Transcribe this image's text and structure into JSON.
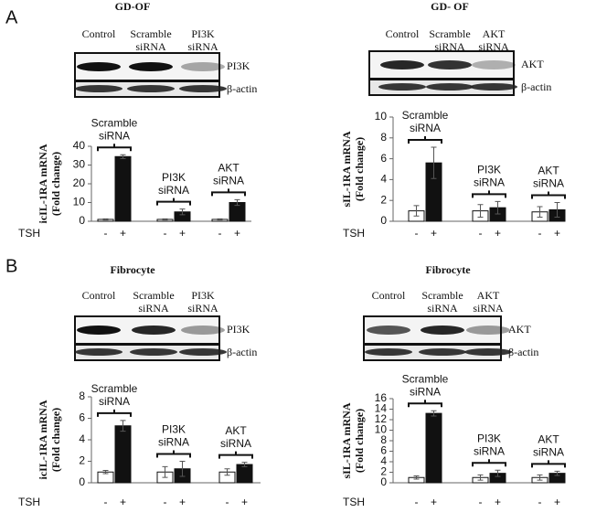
{
  "figure": {
    "panels": [
      {
        "letter": "A",
        "blots": [
          {
            "title": "GD-OF",
            "lanes": [
              [
                "Control"
              ],
              [
                "Scramble",
                "siRNA"
              ],
              [
                "PI3K",
                "siRNA"
              ]
            ],
            "protein": "PI3K",
            "loading": "β-actin"
          },
          {
            "title": "GD- OF",
            "lanes": [
              [
                "Control"
              ],
              [
                "Scramble",
                "siRNA"
              ],
              [
                "AKT",
                "siRNA"
              ]
            ],
            "protein": "AKT",
            "loading": "β-actin"
          }
        ]
      },
      {
        "letter": "B",
        "blots": [
          {
            "title": "Fibrocyte",
            "lanes": [
              [
                "Control"
              ],
              [
                "Scramble",
                "siRNA"
              ],
              [
                "PI3K",
                "siRNA"
              ]
            ],
            "protein": "PI3K",
            "loading": "β-actin"
          },
          {
            "title": "Fibrocyte",
            "lanes": [
              [
                "Control"
              ],
              [
                "Scramble",
                "siRNA"
              ],
              [
                "AKT",
                "siRNA"
              ]
            ],
            "protein": "AKT",
            "loading": "β-actin"
          }
        ]
      }
    ]
  },
  "chart_data": [
    {
      "type": "bar",
      "ylabel": [
        "icIL-1RA mRNA",
        "(Fold change)"
      ],
      "xlabel": "TSH",
      "sublabels": [
        "-",
        "+"
      ],
      "categories": [
        [
          "Scramble",
          "siRNA"
        ],
        [
          "PI3K",
          "siRNA"
        ],
        [
          "AKT",
          "siRNA"
        ]
      ],
      "series": [
        {
          "color": "#ffffff",
          "values": [
            1,
            1,
            1
          ],
          "errors": [
            0.3,
            0.3,
            0.3
          ]
        },
        {
          "color": "#111111",
          "values": [
            34.5,
            5,
            10
          ],
          "errors": [
            1,
            1.5,
            1.5
          ]
        }
      ],
      "ylim": [
        0,
        40
      ],
      "yticks": [
        0,
        10,
        20,
        30,
        40
      ]
    },
    {
      "type": "bar",
      "ylabel": [
        "sIL-1RA mRNA",
        "(Fold change)"
      ],
      "xlabel": "TSH",
      "sublabels": [
        "-",
        "+"
      ],
      "categories": [
        [
          "Scramble",
          "siRNA"
        ],
        [
          "PI3K",
          "siRNA"
        ],
        [
          "AKT",
          "siRNA"
        ]
      ],
      "series": [
        {
          "color": "#ffffff",
          "values": [
            1,
            1,
            0.9
          ],
          "errors": [
            0.5,
            0.6,
            0.5
          ]
        },
        {
          "color": "#111111",
          "values": [
            5.6,
            1.3,
            1.1
          ],
          "errors": [
            1.5,
            0.6,
            0.7
          ]
        }
      ],
      "ylim": [
        0,
        10
      ],
      "yticks": [
        0,
        2,
        4,
        6,
        8,
        10
      ]
    },
    {
      "type": "bar",
      "ylabel": [
        "icIL-1RA mRNA",
        "(Fold change)"
      ],
      "xlabel": "TSH",
      "sublabels": [
        "-",
        "+"
      ],
      "categories": [
        [
          "Scramble",
          "siRNA"
        ],
        [
          "PI3K",
          "siRNA"
        ],
        [
          "AKT",
          "siRNA"
        ]
      ],
      "series": [
        {
          "color": "#ffffff",
          "values": [
            1,
            1,
            1
          ],
          "errors": [
            0.15,
            0.5,
            0.3
          ]
        },
        {
          "color": "#111111",
          "values": [
            5.3,
            1.3,
            1.7
          ],
          "errors": [
            0.5,
            0.7,
            0.2
          ]
        }
      ],
      "ylim": [
        0,
        8
      ],
      "yticks": [
        0,
        2,
        4,
        6,
        8
      ]
    },
    {
      "type": "bar",
      "ylabel": [
        "sIL-1RA mRNA",
        "(Fold change)"
      ],
      "xlabel": "TSH",
      "sublabels": [
        "-",
        "+"
      ],
      "categories": [
        [
          "Scramble",
          "siRNA"
        ],
        [
          "PI3K",
          "siRNA"
        ],
        [
          "AKT",
          "siRNA"
        ]
      ],
      "series": [
        {
          "color": "#ffffff",
          "values": [
            1,
            1,
            1
          ],
          "errors": [
            0.3,
            0.5,
            0.5
          ]
        },
        {
          "color": "#111111",
          "values": [
            13.2,
            1.8,
            1.8
          ],
          "errors": [
            0.5,
            0.6,
            0.4
          ]
        }
      ],
      "ylim": [
        0,
        16
      ],
      "yticks": [
        0,
        2,
        4,
        6,
        8,
        10,
        12,
        14,
        16
      ]
    }
  ]
}
